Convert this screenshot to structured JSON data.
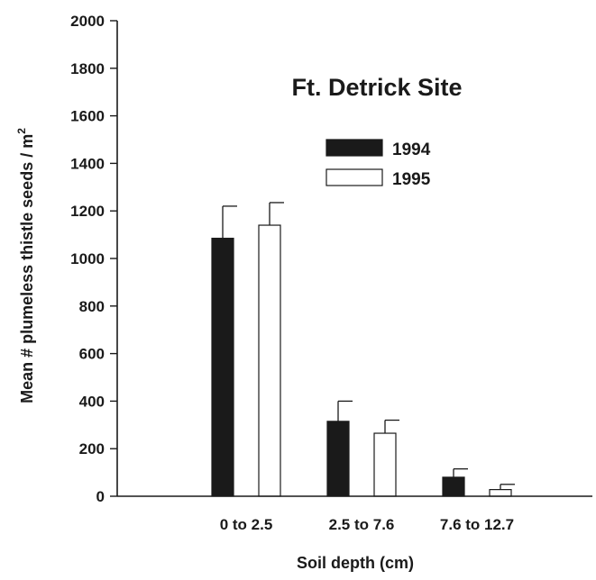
{
  "chart_data": {
    "type": "bar",
    "title": "Ft. Detrick Site",
    "xlabel": "Soil depth (cm)",
    "ylabel": "Mean # plumeless thistle seeds / m",
    "ylabel_sup": "2",
    "categories": [
      "0 to 2.5",
      "2.5 to 7.6",
      "7.6 to 12.7"
    ],
    "series": [
      {
        "name": "1994",
        "values": [
          1085,
          315,
          80
        ],
        "errors": [
          135,
          85,
          35
        ],
        "color": "#1a1a1a"
      },
      {
        "name": "1995",
        "values": [
          1140,
          265,
          28
        ],
        "errors": [
          95,
          55,
          22
        ],
        "color": "#ffffff"
      }
    ],
    "ylim": [
      0,
      2000
    ],
    "yticks": [
      0,
      200,
      400,
      600,
      800,
      1000,
      1200,
      1400,
      1600,
      1800,
      2000
    ],
    "grid": false,
    "legend_position": "top-center"
  }
}
